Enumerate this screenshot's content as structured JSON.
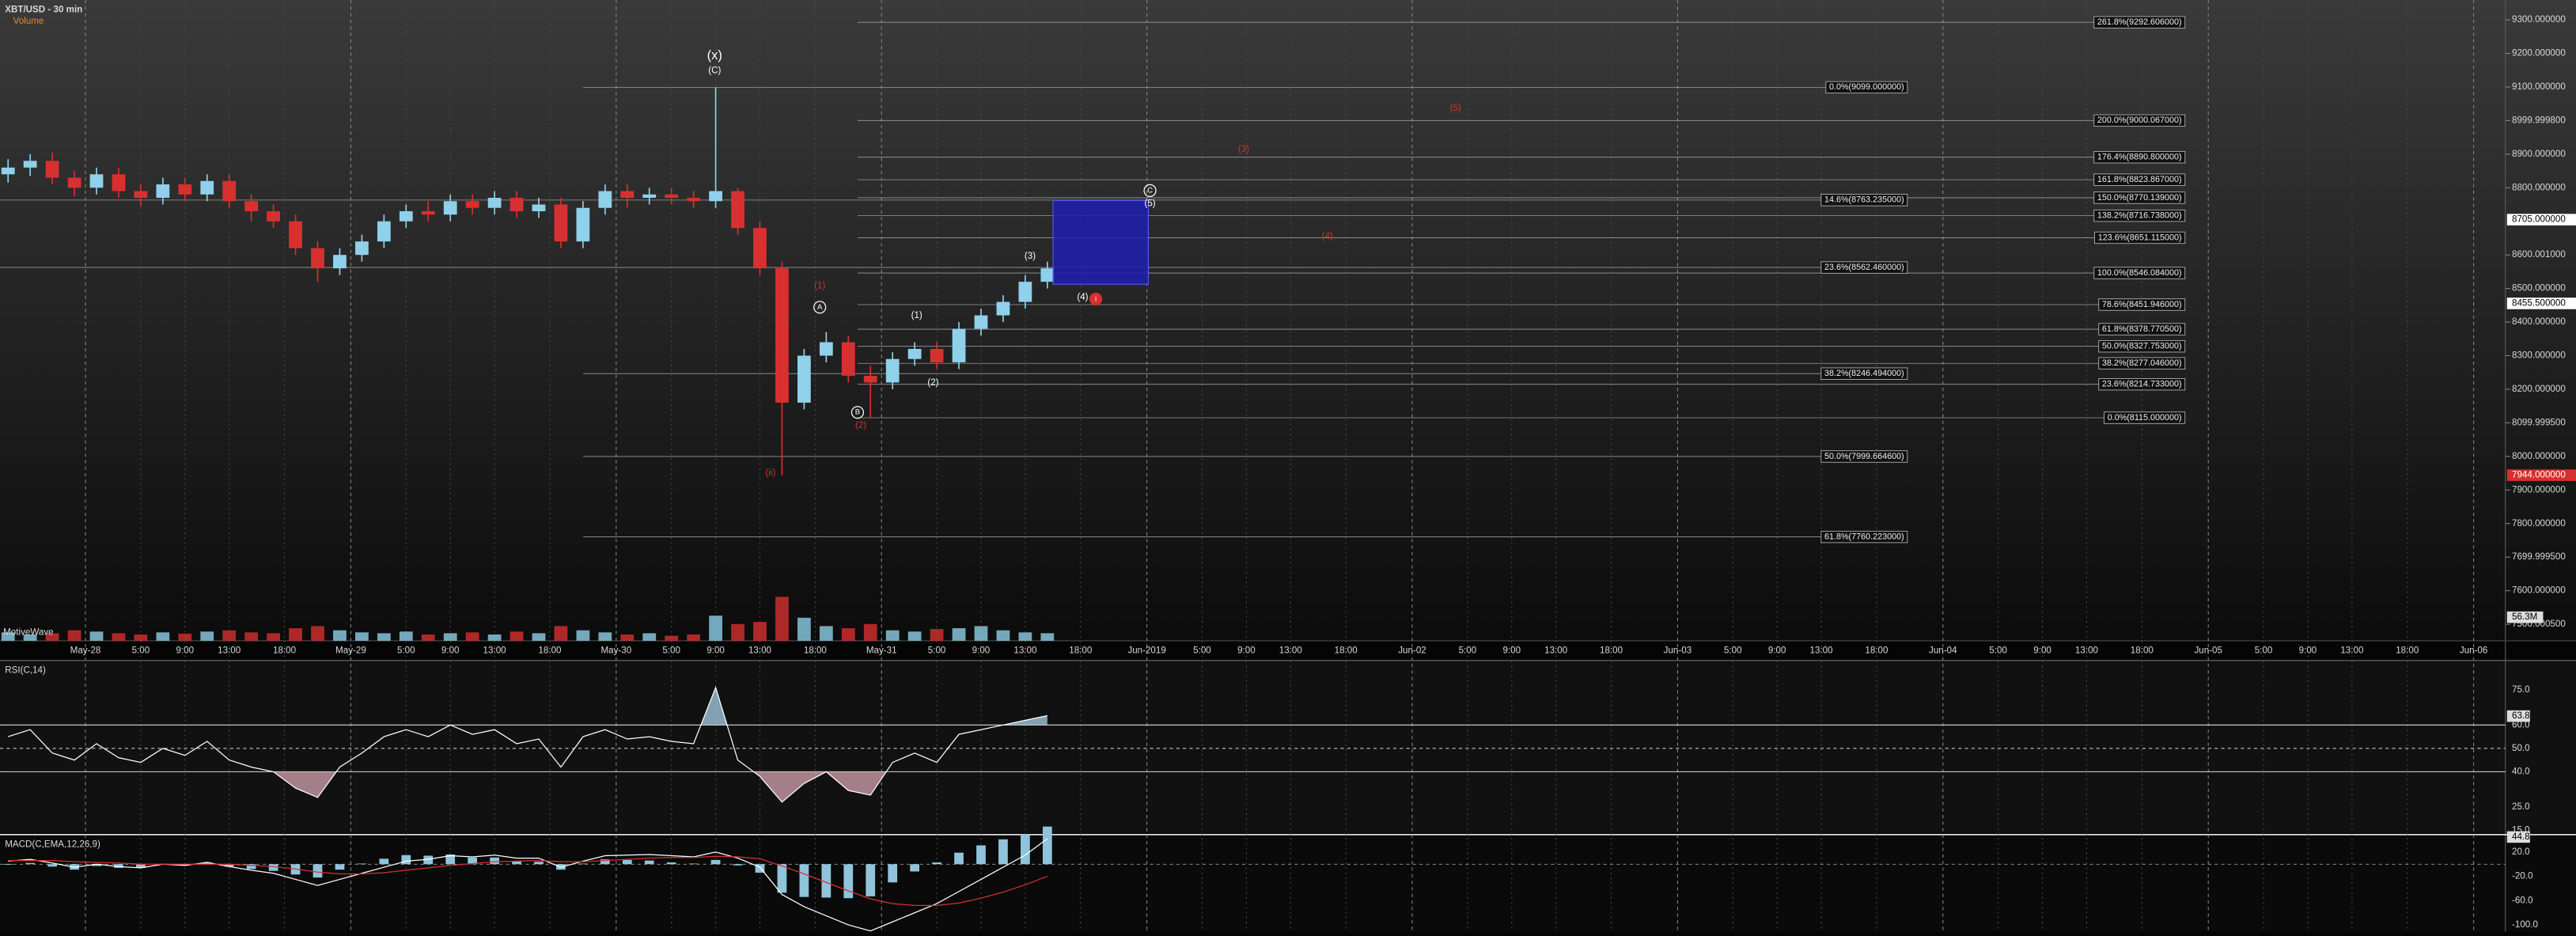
{
  "chart_data": [
    {
      "type": "candlestick",
      "title": "XBT/USD - 30 min",
      "watermark": "MotiveWave",
      "up_color": "#8fd0ea",
      "down_color": "#d83030",
      "xlim": [
        -7.73,
        218.87
      ],
      "ylim": [
        7451,
        9359
      ],
      "xticks": [
        {
          "value": 0,
          "label": "May-28"
        },
        {
          "value": 5,
          "label": "5:00"
        },
        {
          "value": 9,
          "label": "9:00"
        },
        {
          "value": 13,
          "label": "13:00"
        },
        {
          "value": 18,
          "label": "18:00"
        },
        {
          "value": 24,
          "label": "May-29"
        },
        {
          "value": 29,
          "label": "5:00"
        },
        {
          "value": 33,
          "label": "9:00"
        },
        {
          "value": 37,
          "label": "13:00"
        },
        {
          "value": 42,
          "label": "18:00"
        },
        {
          "value": 48,
          "label": "May-30"
        },
        {
          "value": 53,
          "label": "5:00"
        },
        {
          "value": 57,
          "label": "9:00"
        },
        {
          "value": 61,
          "label": "13:00"
        },
        {
          "value": 66,
          "label": "18:00"
        },
        {
          "value": 72,
          "label": "May-31"
        },
        {
          "value": 77,
          "label": "5:00"
        },
        {
          "value": 81,
          "label": "9:00"
        },
        {
          "value": 85,
          "label": "13:00"
        },
        {
          "value": 90,
          "label": "18:00"
        },
        {
          "value": 96,
          "label": "Jun-2019"
        },
        {
          "value": 101,
          "label": "5:00"
        },
        {
          "value": 105,
          "label": "9:00"
        },
        {
          "value": 109,
          "label": "13:00"
        },
        {
          "value": 114,
          "label": "18:00"
        },
        {
          "value": 120,
          "label": "Jun-02"
        },
        {
          "value": 125,
          "label": "5:00"
        },
        {
          "value": 129,
          "label": "9:00"
        },
        {
          "value": 133,
          "label": "13:00"
        },
        {
          "value": 138,
          "label": "18:00"
        },
        {
          "value": 144,
          "label": "Jun-03"
        },
        {
          "value": 149,
          "label": "5:00"
        },
        {
          "value": 153,
          "label": "9:00"
        },
        {
          "value": 157,
          "label": "13:00"
        },
        {
          "value": 162,
          "label": "18:00"
        },
        {
          "value": 168,
          "label": "Jun-04"
        },
        {
          "value": 173,
          "label": "5:00"
        },
        {
          "value": 177,
          "label": "9:00"
        },
        {
          "value": 181,
          "label": "13:00"
        },
        {
          "value": 186,
          "label": "18:00"
        },
        {
          "value": 192,
          "label": "Jun-05"
        },
        {
          "value": 197,
          "label": "5:00"
        },
        {
          "value": 201,
          "label": "9:00"
        },
        {
          "value": 205,
          "label": "13:00"
        },
        {
          "value": 210,
          "label": "18:00"
        },
        {
          "value": 216,
          "label": "Jun-06"
        }
      ],
      "yticks": [
        {
          "value": 9300,
          "label": "9300.000000"
        },
        {
          "value": 9200,
          "label": "9200.000000"
        },
        {
          "value": 9100,
          "label": "9100.000000"
        },
        {
          "value": 8999.9998,
          "label": "8999.999800"
        },
        {
          "value": 8900,
          "label": "8900.000000"
        },
        {
          "value": 8800,
          "label": "8800.000000"
        },
        {
          "value": 8600.001,
          "label": "8600.001000"
        },
        {
          "value": 8500,
          "label": "8500.000000"
        },
        {
          "value": 8400,
          "label": "8400.000000"
        },
        {
          "value": 8300,
          "label": "8300.000000"
        },
        {
          "value": 8200,
          "label": "8200.000000"
        },
        {
          "value": 8099.9995,
          "label": "8099.999500"
        },
        {
          "value": 8000,
          "label": "8000.000000"
        },
        {
          "value": 7900,
          "label": "7900.000000"
        },
        {
          "value": 7800,
          "label": "7800.000000"
        },
        {
          "value": 7699.9995,
          "label": "7699.999500"
        },
        {
          "value": 7600,
          "label": "7600.000000"
        },
        {
          "value": 7500.0005,
          "label": "7500.000500"
        }
      ],
      "price_markers": [
        {
          "value": 8705,
          "label": "8705.000000",
          "color": "#ffffff"
        },
        {
          "value": 8455.5,
          "label": "8455.500000",
          "color": "#ffffff"
        },
        {
          "value": 7944,
          "label": "7944.000000",
          "color": "#d83030"
        }
      ],
      "x": [
        -7,
        -5,
        -3,
        -1,
        1,
        3,
        5,
        7,
        9,
        11,
        13,
        15,
        17,
        19,
        21,
        23,
        25,
        27,
        29,
        31,
        33,
        35,
        37,
        39,
        41,
        43,
        45,
        47,
        49,
        51,
        53,
        55,
        57,
        59,
        61,
        63,
        65,
        67,
        69,
        71,
        73,
        75,
        77,
        79,
        81,
        83,
        85,
        87
      ],
      "open": [
        8840,
        8860,
        8880,
        8830,
        8800,
        8840,
        8790,
        8770,
        8810,
        8780,
        8820,
        8760,
        8730,
        8700,
        8620,
        8560,
        8600,
        8640,
        8700,
        8730,
        8720,
        8760,
        8740,
        8770,
        8730,
        8750,
        8640,
        8740,
        8790,
        8770,
        8780,
        8770,
        8760,
        8790,
        8680,
        8560,
        8160,
        8300,
        8340,
        8240,
        8220,
        8290,
        8320,
        8280,
        8380,
        8420,
        8460,
        8520
      ],
      "high": [
        8885,
        8900,
        8905,
        8850,
        8860,
        8860,
        8810,
        8830,
        8830,
        8840,
        8840,
        8780,
        8750,
        8720,
        8640,
        8620,
        8660,
        8720,
        8750,
        8760,
        8780,
        8780,
        8790,
        8790,
        8770,
        8770,
        8760,
        8810,
        8810,
        8800,
        8800,
        8790,
        9099,
        8800,
        8700,
        8580,
        8320,
        8370,
        8360,
        8270,
        8310,
        8340,
        8340,
        8400,
        8440,
        8480,
        8540,
        8580
      ],
      "low": [
        8815,
        8835,
        8810,
        8775,
        8780,
        8770,
        8745,
        8750,
        8760,
        8760,
        8740,
        8700,
        8680,
        8600,
        8520,
        8540,
        8580,
        8620,
        8680,
        8700,
        8700,
        8720,
        8720,
        8710,
        8710,
        8620,
        8620,
        8720,
        8740,
        8750,
        8750,
        8740,
        8740,
        8660,
        8540,
        7944,
        8140,
        8280,
        8220,
        8115,
        8200,
        8270,
        8260,
        8260,
        8360,
        8400,
        8440,
        8500
      ],
      "close": [
        8860,
        8880,
        8830,
        8800,
        8840,
        8790,
        8770,
        8810,
        8780,
        8820,
        8760,
        8730,
        8700,
        8620,
        8560,
        8600,
        8640,
        8700,
        8730,
        8720,
        8760,
        8740,
        8770,
        8730,
        8750,
        8640,
        8740,
        8790,
        8770,
        8780,
        8770,
        8760,
        8790,
        8680,
        8560,
        8160,
        8300,
        8340,
        8240,
        8220,
        8290,
        8320,
        8280,
        8380,
        8420,
        8460,
        8520,
        8560
      ],
      "volume": {
        "name": "Volume",
        "color": "#e08a2a",
        "ylim": [
          0,
          110
        ],
        "marker": {
          "value": 56.3,
          "label": "56.3M"
        },
        "values": [
          20,
          15,
          18,
          25,
          22,
          18,
          15,
          20,
          17,
          22,
          25,
          20,
          18,
          30,
          35,
          25,
          20,
          18,
          22,
          15,
          18,
          20,
          15,
          22,
          18,
          35,
          25,
          20,
          15,
          18,
          12,
          15,
          60,
          40,
          45,
          105,
          55,
          35,
          30,
          40,
          25,
          22,
          28,
          30,
          35,
          25,
          20,
          18
        ]
      },
      "fib_levels": [
        {
          "value": 9292.606,
          "label": "261.8%(9292.606000)"
        },
        {
          "value": 9000.067,
          "label": "200.0%(9000.067000)"
        },
        {
          "value": 8890.8,
          "label": "176.4%(8890.800000)"
        },
        {
          "value": 8823.867,
          "label": "161.8%(8823.867000)"
        },
        {
          "value": 8770.139,
          "label": "150.0%(8770.139000)"
        },
        {
          "value": 8716.738,
          "label": "138.2%(8716.738000)"
        },
        {
          "value": 8651.115,
          "label": "123.6%(8651.115000)"
        },
        {
          "value": 8546.084,
          "label": "100.0%(8546.084000)"
        },
        {
          "value": 8451.946,
          "label": "78.6%(8451.946000)"
        },
        {
          "value": 8378.7705,
          "label": "61.8%(8378.770500)"
        },
        {
          "value": 8327.753,
          "label": "50.0%(8327.753000)"
        },
        {
          "value": 8277.046,
          "label": "38.2%(8277.046000)"
        },
        {
          "value": 8214.733,
          "label": "23.6%(8214.733000)"
        },
        {
          "value": 8115,
          "label": "0.0%(8115.000000)"
        },
        {
          "value": 9099,
          "label": "0.0%(9099.000000)"
        },
        {
          "value": 8763.235,
          "label": "14.6%(8763.235000)"
        },
        {
          "value": 8562.46,
          "label": "23.6%(8562.460000)"
        },
        {
          "value": 8246.494,
          "label": "38.2%(8246.494000)"
        },
        {
          "value": 7999.6646,
          "label": "50.0%(7999.664600)"
        },
        {
          "value": 7760.223,
          "label": "61.8%(7760.223000)"
        }
      ],
      "annotations": [
        {
          "text": "(x)",
          "color": "#ffffff"
        },
        {
          "text": "(C)",
          "color": "#ffffff"
        },
        {
          "text": "(1)",
          "color": "#d83030"
        },
        {
          "text": "A",
          "color": "#ffffff",
          "circled": true
        },
        {
          "text": "(1)",
          "color": "#ffffff"
        },
        {
          "text": "(2)",
          "color": "#ffffff"
        },
        {
          "text": "B",
          "color": "#ffffff",
          "circled": true
        },
        {
          "text": "(2)",
          "color": "#d83030"
        },
        {
          "text": "(3)",
          "color": "#ffffff"
        },
        {
          "text": "(4)",
          "color": "#ffffff"
        },
        {
          "text": "i",
          "color": "#d83030",
          "circled": true,
          "filled": true
        },
        {
          "text": "(ii)",
          "color": "#d83030"
        },
        {
          "text": "C",
          "color": "#ffffff",
          "circled": true
        },
        {
          "text": "(5)",
          "color": "#ffffff"
        },
        {
          "text": "(3)",
          "color": "#d83030"
        },
        {
          "text": "(4)",
          "color": "#d83030"
        },
        {
          "text": "(5)",
          "color": "#d83030"
        }
      ]
    },
    {
      "type": "line",
      "title": "RSI(C,14)",
      "color": "#ffffff",
      "above_color": "#9fc7dc",
      "below_color": "#c99aa8",
      "ylim": [
        13.8,
        87.6
      ],
      "yticks": [
        {
          "value": 75,
          "label": "75.0"
        },
        {
          "value": 60,
          "label": "60.0"
        },
        {
          "value": 50,
          "label": "50.0"
        },
        {
          "value": 40,
          "label": "40.0"
        },
        {
          "value": 25,
          "label": "25.0"
        },
        {
          "value": 15,
          "label": "15.0"
        }
      ],
      "levels": [
        {
          "value": 60,
          "style": "solid"
        },
        {
          "value": 50,
          "style": "dashed"
        },
        {
          "value": 40,
          "style": "solid"
        }
      ],
      "marker": {
        "value": 63.8,
        "label": "63.8"
      },
      "values": [
        55,
        58,
        48,
        45,
        52,
        46,
        44,
        50,
        47,
        53,
        45,
        42,
        40,
        33,
        29,
        42,
        48,
        55,
        58,
        55,
        60,
        56,
        58,
        52,
        54,
        42,
        55,
        58,
        54,
        55,
        53,
        52,
        76,
        45,
        38,
        27,
        35,
        40,
        32,
        30,
        44,
        48,
        44,
        56,
        58,
        60,
        62,
        64
      ]
    },
    {
      "type": "macd",
      "title": "MACD(C,EMA,12,26,9)",
      "ylim": [
        -111,
        46
      ],
      "yticks": [
        {
          "value": 20,
          "label": "20.0"
        },
        {
          "value": -20,
          "label": "-20.0"
        },
        {
          "value": -60,
          "label": "-60.0"
        },
        {
          "value": -100,
          "label": "-100.0"
        }
      ],
      "marker": {
        "value": 44.8,
        "label": "44.8"
      },
      "series": [
        {
          "name": "MACD",
          "color": "#ffffff",
          "values": [
            5,
            8,
            2,
            -5,
            0,
            -4,
            -6,
            0,
            -2,
            3,
            -4,
            -10,
            -15,
            -25,
            -35,
            -25,
            -15,
            -5,
            5,
            8,
            14,
            12,
            15,
            10,
            10,
            -5,
            5,
            14,
            15,
            16,
            14,
            12,
            20,
            10,
            -5,
            -50,
            -70,
            -85,
            -100,
            -110,
            -95,
            -80,
            -65,
            -45,
            -25,
            -5,
            15,
            42
          ]
        },
        {
          "name": "Signal",
          "color": "#d83030",
          "values": [
            6,
            6,
            6,
            4,
            3,
            2,
            0,
            0,
            0,
            0,
            0,
            -2,
            -4,
            -8,
            -13,
            -16,
            -16,
            -14,
            -10,
            -6,
            -2,
            1,
            4,
            5,
            6,
            4,
            4,
            6,
            8,
            10,
            11,
            11,
            13,
            12,
            9,
            -3,
            -16,
            -30,
            -44,
            -57,
            -65,
            -68,
            -68,
            -64,
            -56,
            -46,
            -34,
            -20
          ]
        },
        {
          "name": "Histogram",
          "color": "#8fc4dc",
          "values": [
            -1,
            2,
            -4,
            -9,
            -3,
            -6,
            -6,
            0,
            -2,
            3,
            -4,
            -8,
            -11,
            -17,
            -22,
            -9,
            1,
            9,
            15,
            14,
            16,
            11,
            11,
            5,
            4,
            -9,
            1,
            8,
            7,
            6,
            3,
            1,
            7,
            -2,
            -14,
            -47,
            -54,
            -55,
            -56,
            -53,
            -30,
            -12,
            3,
            19,
            31,
            41,
            49,
            62
          ]
        }
      ]
    }
  ]
}
